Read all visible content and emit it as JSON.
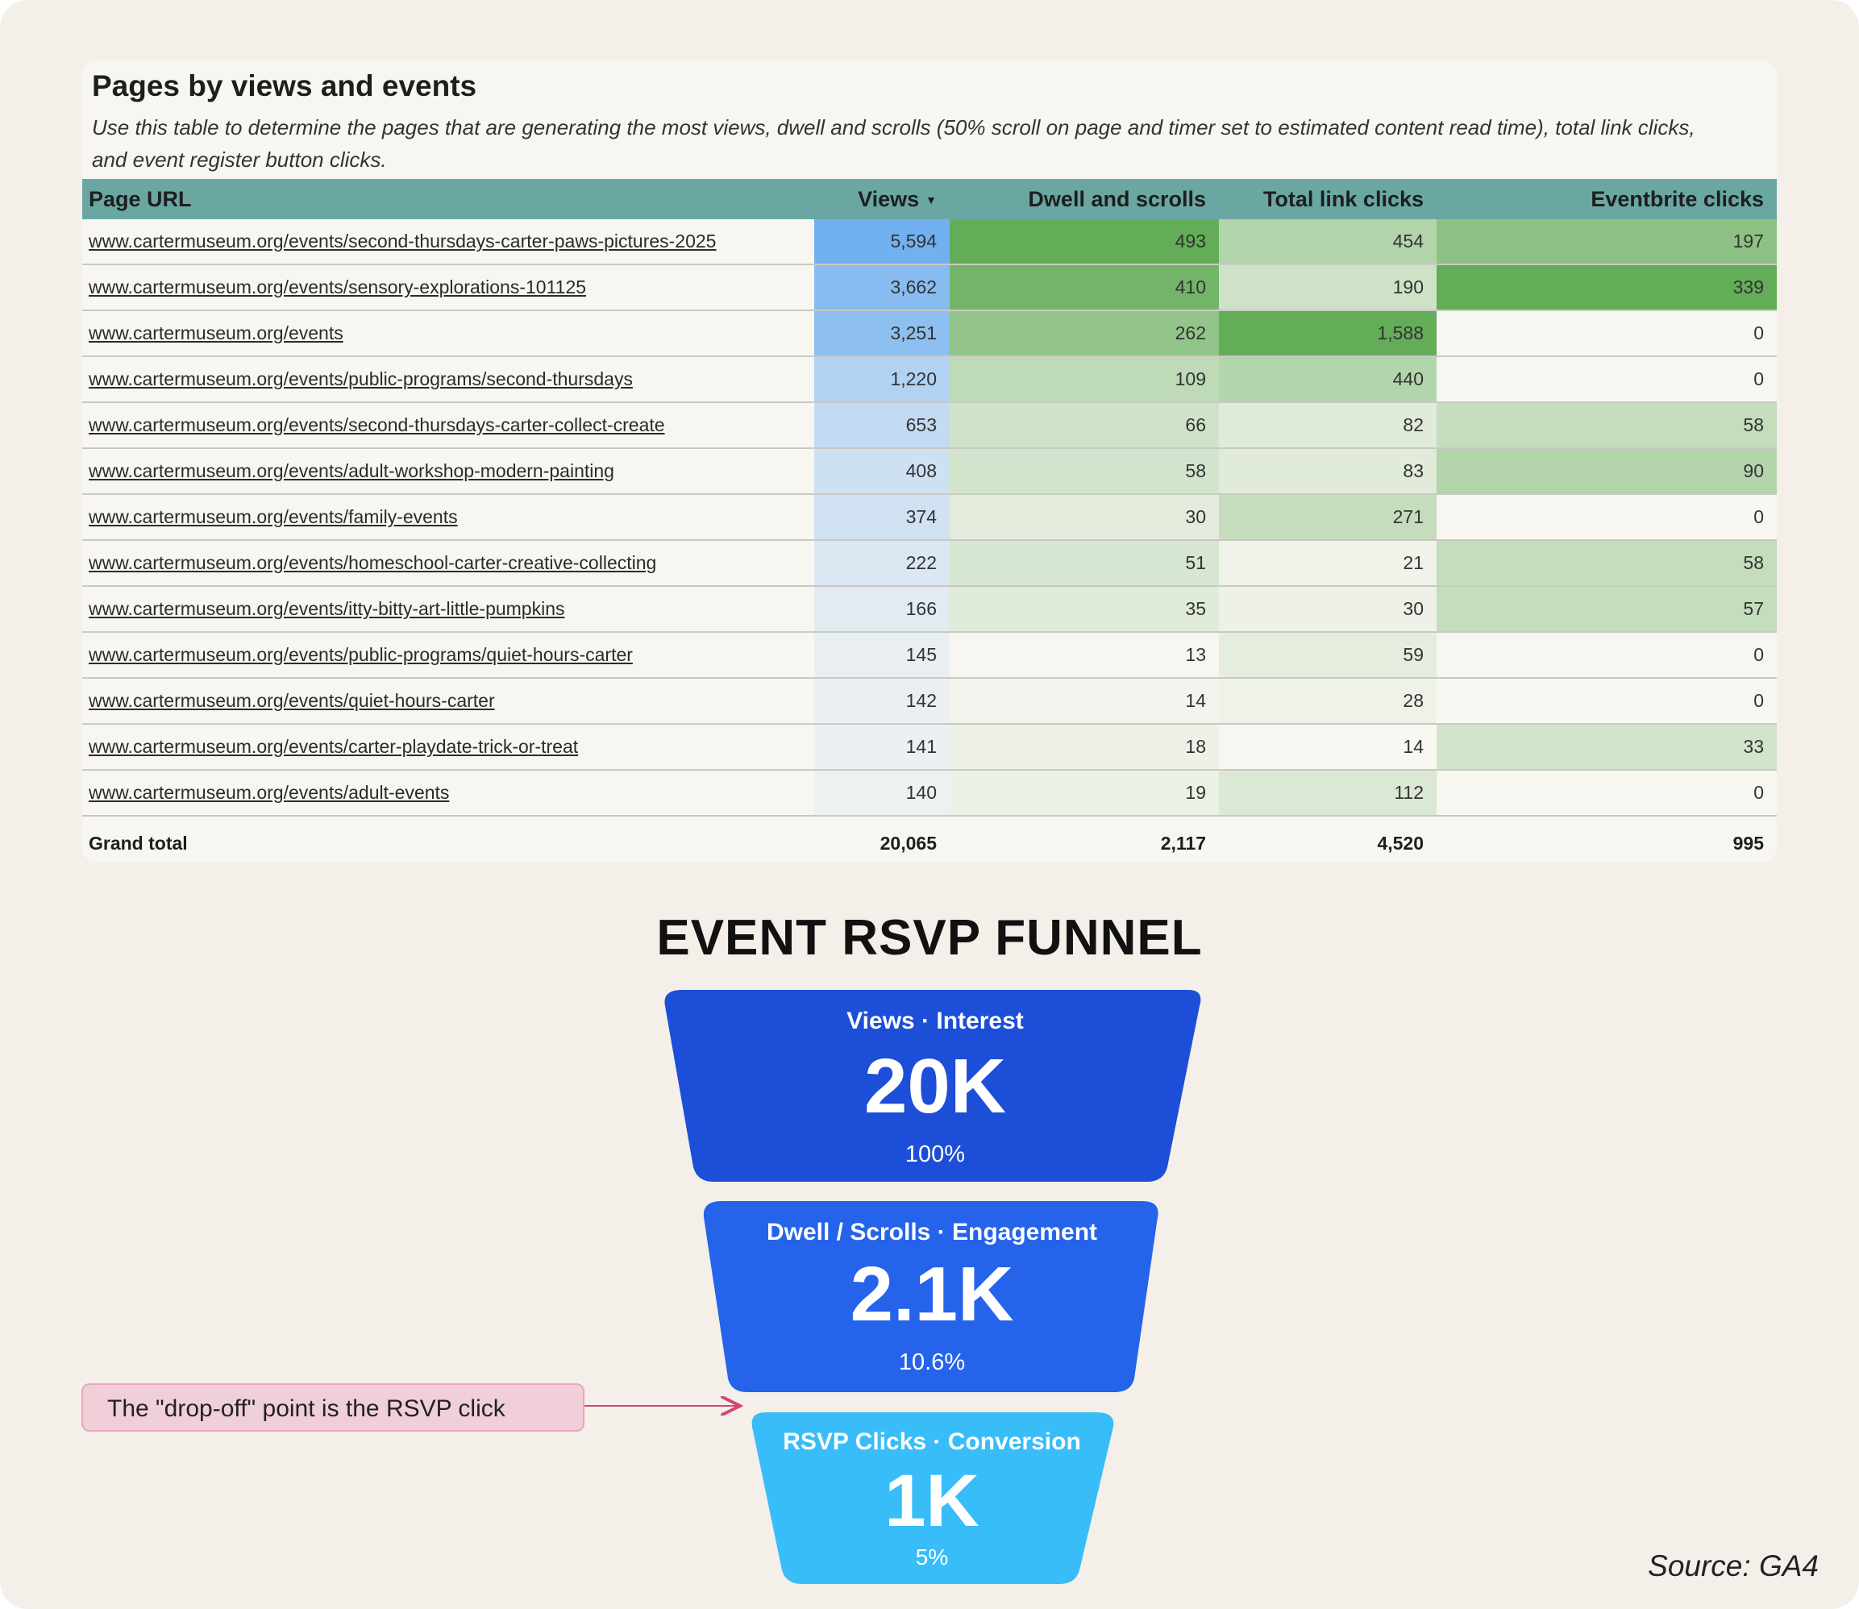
{
  "table": {
    "title": "Pages by views and events",
    "description": "Use this table to determine the pages that are generating the most views, dwell and scrolls (50% scroll on page and timer set to estimated content read time), total link clicks, and event register button clicks.",
    "columns": [
      "Page URL",
      "Views",
      "Dwell and scrolls",
      "Total link clicks",
      "Eventbrite clicks"
    ],
    "sort_indicator": "▼",
    "rows": [
      {
        "url": "www.cartermuseum.org/events/second-thursdays-carter-paws-pictures-2025",
        "views": "5,594",
        "dwell": "493",
        "links": "454",
        "eventbrite": "197"
      },
      {
        "url": "www.cartermuseum.org/events/sensory-explorations-101125",
        "views": "3,662",
        "dwell": "410",
        "links": "190",
        "eventbrite": "339"
      },
      {
        "url": "www.cartermuseum.org/events",
        "views": "3,251",
        "dwell": "262",
        "links": "1,588",
        "eventbrite": "0"
      },
      {
        "url": "www.cartermuseum.org/events/public-programs/second-thursdays",
        "views": "1,220",
        "dwell": "109",
        "links": "440",
        "eventbrite": "0"
      },
      {
        "url": "www.cartermuseum.org/events/second-thursdays-carter-collect-create",
        "views": "653",
        "dwell": "66",
        "links": "82",
        "eventbrite": "58"
      },
      {
        "url": "www.cartermuseum.org/events/adult-workshop-modern-painting",
        "views": "408",
        "dwell": "58",
        "links": "83",
        "eventbrite": "90"
      },
      {
        "url": "www.cartermuseum.org/events/family-events",
        "views": "374",
        "dwell": "30",
        "links": "271",
        "eventbrite": "0"
      },
      {
        "url": "www.cartermuseum.org/events/homeschool-carter-creative-collecting",
        "views": "222",
        "dwell": "51",
        "links": "21",
        "eventbrite": "58"
      },
      {
        "url": "www.cartermuseum.org/events/itty-bitty-art-little-pumpkins",
        "views": "166",
        "dwell": "35",
        "links": "30",
        "eventbrite": "57"
      },
      {
        "url": "www.cartermuseum.org/events/public-programs/quiet-hours-carter",
        "views": "145",
        "dwell": "13",
        "links": "59",
        "eventbrite": "0"
      },
      {
        "url": "www.cartermuseum.org/events/quiet-hours-carter",
        "views": "142",
        "dwell": "14",
        "links": "28",
        "eventbrite": "0"
      },
      {
        "url": "www.cartermuseum.org/events/carter-playdate-trick-or-treat",
        "views": "141",
        "dwell": "18",
        "links": "14",
        "eventbrite": "33"
      },
      {
        "url": "www.cartermuseum.org/events/adult-events",
        "views": "140",
        "dwell": "19",
        "links": "112",
        "eventbrite": "0"
      }
    ],
    "total": {
      "label": "Grand total",
      "views": "20,065",
      "dwell": "2,117",
      "links": "4,520",
      "eventbrite": "995"
    },
    "colors": {
      "header": "#6aa7a3",
      "views_scale": [
        "#eef1f2",
        "#72b1f1"
      ],
      "green_scale": [
        "#f7f6f1",
        "#63ad58"
      ]
    }
  },
  "funnel": {
    "title": "EVENT RSVP FUNNEL",
    "stages": [
      {
        "label": "Views · Interest",
        "value": "20K",
        "percent": "100%",
        "color": "#1d4ed8"
      },
      {
        "label": "Dwell / Scrolls · Engagement",
        "value": "2.1K",
        "percent": "10.6%",
        "color": "#2563eb"
      },
      {
        "label": "RSVP Clicks · Conversion",
        "value": "1K",
        "percent": "5%",
        "color": "#38bdf8"
      }
    ],
    "callout": "The \"drop-off\" point is the RSVP click",
    "callout_arrow_color": "#d6457a"
  },
  "source": "Source: GA4",
  "chart_data": [
    {
      "type": "table",
      "title": "Pages by views and events",
      "columns": [
        "Page URL",
        "Views",
        "Dwell and scrolls",
        "Total link clicks",
        "Eventbrite clicks"
      ],
      "rows": [
        [
          "www.cartermuseum.org/events/second-thursdays-carter-paws-pictures-2025",
          5594,
          493,
          454,
          197
        ],
        [
          "www.cartermuseum.org/events/sensory-explorations-101125",
          3662,
          410,
          190,
          339
        ],
        [
          "www.cartermuseum.org/events",
          3251,
          262,
          1588,
          0
        ],
        [
          "www.cartermuseum.org/events/public-programs/second-thursdays",
          1220,
          109,
          440,
          0
        ],
        [
          "www.cartermuseum.org/events/second-thursdays-carter-collect-create",
          653,
          66,
          82,
          58
        ],
        [
          "www.cartermuseum.org/events/adult-workshop-modern-painting",
          408,
          58,
          83,
          90
        ],
        [
          "www.cartermuseum.org/events/family-events",
          374,
          30,
          271,
          0
        ],
        [
          "www.cartermuseum.org/events/homeschool-carter-creative-collecting",
          222,
          51,
          21,
          58
        ],
        [
          "www.cartermuseum.org/events/itty-bitty-art-little-pumpkins",
          166,
          35,
          30,
          57
        ],
        [
          "www.cartermuseum.org/events/public-programs/quiet-hours-carter",
          145,
          13,
          59,
          0
        ],
        [
          "www.cartermuseum.org/events/quiet-hours-carter",
          142,
          14,
          28,
          0
        ],
        [
          "www.cartermuseum.org/events/carter-playdate-trick-or-treat",
          141,
          18,
          14,
          33
        ],
        [
          "www.cartermuseum.org/events/adult-events",
          140,
          19,
          112,
          0
        ]
      ],
      "totals": [
        "Grand total",
        20065,
        2117,
        4520,
        995
      ]
    },
    {
      "type": "bar",
      "title": "EVENT RSVP FUNNEL",
      "categories": [
        "Views · Interest",
        "Dwell / Scrolls · Engagement",
        "RSVP Clicks · Conversion"
      ],
      "values": [
        20000,
        2100,
        1000
      ],
      "percent_labels": [
        "100%",
        "10.6%",
        "5%"
      ]
    }
  ]
}
